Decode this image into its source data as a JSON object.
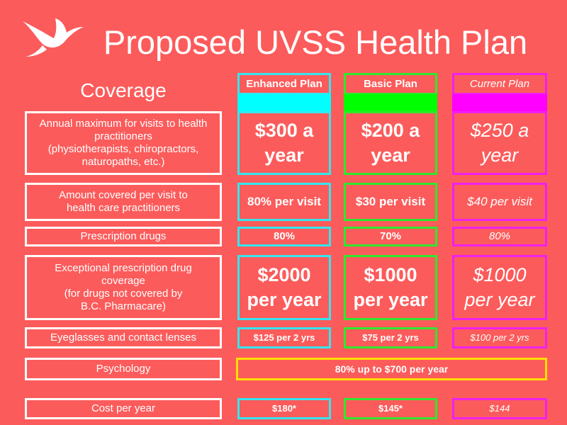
{
  "header": {
    "title": "Proposed UVSS Health Plan"
  },
  "table": {
    "heading": "Coverage",
    "plans": [
      "Enhanced Plan",
      "Basic Plan",
      "Current Plan"
    ],
    "rows": [
      {
        "label": [
          "Annual maximum for visits to health",
          "practitioners",
          "(physiotherapists, chiropractors,",
          "naturopaths, etc.)"
        ],
        "values": [
          "$300 a year",
          "$200 a year",
          "$250 a year"
        ]
      },
      {
        "label": [
          "Amount covered per visit to",
          "health care practitioners"
        ],
        "values": [
          "80% per visit",
          "$30 per visit",
          "$40 per visit"
        ]
      },
      {
        "label": [
          "Prescription drugs"
        ],
        "values": [
          "80%",
          "70%",
          "80%"
        ]
      },
      {
        "label": [
          "Exceptional prescription drug",
          "coverage",
          "(for drugs not covered by",
          "B.C. Pharmacare)"
        ],
        "values": [
          "$2000 per year",
          "$1000 per year",
          "$1000 per year"
        ]
      },
      {
        "label": [
          "Eyeglasses and contact lenses"
        ],
        "values": [
          "$125 per 2 yrs",
          "$75 per 2 yrs",
          "$100 per 2 yrs"
        ]
      },
      {
        "label": [
          "Psychology"
        ],
        "values": [
          "80% up to $700 per year"
        ]
      },
      {
        "label": [
          "Cost per year"
        ],
        "values": [
          "$180*",
          "$145*",
          "$144"
        ]
      }
    ]
  }
}
